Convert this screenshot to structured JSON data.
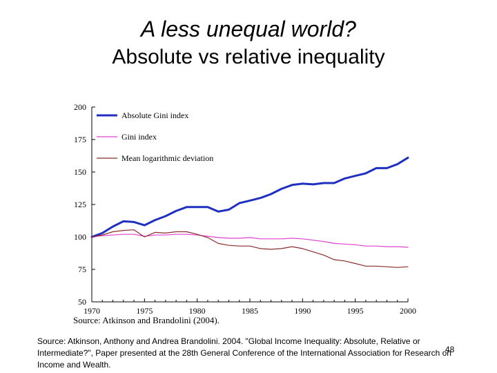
{
  "slide": {
    "title": "A less unequal world?",
    "subtitle": "Absolute vs relative inequality",
    "footnote": "Source: Atkinson, Anthony and Andrea Brandolini. 2004. \"Global Income Inequality: Absolute, Relative or Intermediate?\", Paper presented at the 28th General Conference of the International Association for Research on Income and Wealth.",
    "page_number": "48"
  },
  "chart_data": {
    "type": "line",
    "title": "",
    "xlabel": "",
    "ylabel": "",
    "source_note": "Source: Atkinson and Brandolini (2004).",
    "xlim": [
      1970,
      2000
    ],
    "ylim": [
      50,
      200
    ],
    "x_ticks": [
      1970,
      1975,
      1980,
      1985,
      1990,
      1995,
      2000
    ],
    "y_ticks": [
      50,
      75,
      100,
      125,
      150,
      175,
      200
    ],
    "legend": {
      "placement": "top-left"
    },
    "x": [
      1970,
      1971,
      1972,
      1973,
      1974,
      1975,
      1976,
      1977,
      1978,
      1979,
      1980,
      1981,
      1982,
      1983,
      1984,
      1985,
      1986,
      1987,
      1988,
      1989,
      1990,
      1991,
      1992,
      1993,
      1994,
      1995,
      1996,
      1997,
      1998,
      1999,
      2000
    ],
    "series": [
      {
        "name": "Absolute Gini index",
        "color": "#1f2fbf",
        "width": 3,
        "values": [
          100,
          103,
          108,
          112,
          111.5,
          109,
          113,
          116,
          120,
          123,
          123,
          123,
          119.5,
          121,
          126,
          128,
          130,
          133,
          137,
          140,
          141,
          140.5,
          141.5,
          141.5,
          145,
          147,
          149,
          153,
          153,
          156,
          161
        ]
      },
      {
        "name": "Gini index",
        "color": "#e040d0",
        "width": 1.2,
        "values": [
          100,
          101,
          101.5,
          102,
          102,
          100.5,
          101.5,
          101.5,
          102,
          102,
          101.5,
          100.5,
          99.5,
          99,
          99,
          99.5,
          98.5,
          98.5,
          98.5,
          99,
          98.5,
          97.5,
          96.5,
          95,
          94.5,
          94,
          93,
          93,
          92.5,
          92.5,
          92
        ]
      },
      {
        "name": "Mean logarithmic deviation",
        "color": "#8a2b2b",
        "width": 1.2,
        "values": [
          100,
          101.5,
          104,
          105,
          105.5,
          100,
          103.5,
          103,
          104,
          104,
          102,
          99.5,
          95,
          93.5,
          93,
          93,
          91,
          90.5,
          91,
          92.5,
          91,
          88.5,
          86,
          82.5,
          81.5,
          79.5,
          77.5,
          77.5,
          77,
          76.5,
          77
        ]
      }
    ]
  }
}
